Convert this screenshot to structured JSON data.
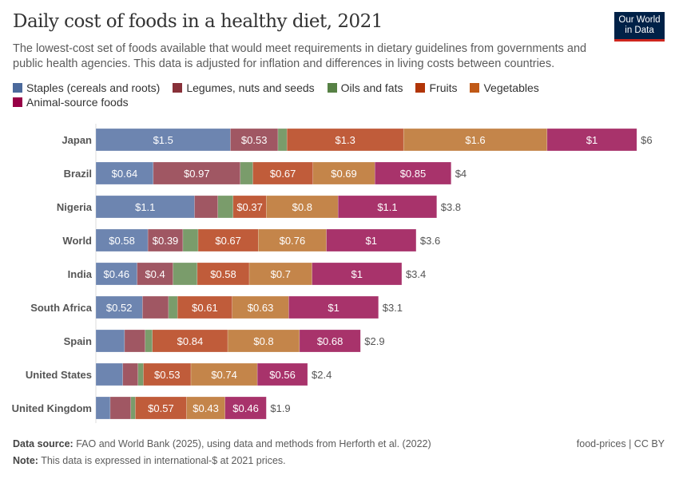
{
  "header": {
    "title": "Daily cost of foods in a healthy diet, 2021",
    "subtitle": "The lowest-cost set of foods available that would meet requirements in dietary guidelines from governments and public health agencies. This data is adjusted for inflation and differences in living costs between countries.",
    "logo_line1": "Our World",
    "logo_line2": "in Data"
  },
  "chart_data": {
    "type": "bar",
    "orientation": "horizontal",
    "stacked": true,
    "categories": [
      "Japan",
      "Brazil",
      "Nigeria",
      "World",
      "India",
      "South Africa",
      "Spain",
      "United States",
      "United Kingdom"
    ],
    "series": [
      {
        "name": "Staples (cereals and roots)",
        "color": "#6d85b0",
        "legend_color": "#4c6a9c",
        "values": [
          1.5,
          0.64,
          1.1,
          0.58,
          0.46,
          0.52,
          0.32,
          0.3,
          0.16
        ],
        "labels": [
          "$1.5",
          "$0.64",
          "$1.1",
          "$0.58",
          "$0.46",
          "$0.52",
          "",
          "",
          ""
        ]
      },
      {
        "name": "Legumes, nuts and seeds",
        "color": "#a05763",
        "legend_color": "#883039",
        "values": [
          0.53,
          0.97,
          0.26,
          0.39,
          0.4,
          0.29,
          0.23,
          0.17,
          0.23
        ],
        "labels": [
          "$0.53",
          "$0.97",
          "",
          "$0.39",
          "$0.4",
          "",
          "",
          "",
          ""
        ]
      },
      {
        "name": "Oils and fats",
        "color": "#7a9c6b",
        "legend_color": "#578145",
        "values": [
          0.1,
          0.14,
          0.17,
          0.17,
          0.27,
          0.1,
          0.08,
          0.06,
          0.05
        ],
        "labels": [
          "",
          "",
          "",
          "",
          "",
          "",
          "",
          "",
          ""
        ]
      },
      {
        "name": "Fruits",
        "color": "#c05c3a",
        "legend_color": "#b13507",
        "values": [
          1.3,
          0.67,
          0.37,
          0.67,
          0.58,
          0.61,
          0.84,
          0.53,
          0.57
        ],
        "labels": [
          "$1.3",
          "$0.67",
          "$0.37",
          "$0.67",
          "$0.58",
          "$0.61",
          "$0.84",
          "$0.53",
          "$0.57"
        ]
      },
      {
        "name": "Vegetables",
        "color": "#c4854a",
        "legend_color": "#c05917",
        "values": [
          1.6,
          0.69,
          0.8,
          0.76,
          0.7,
          0.63,
          0.8,
          0.74,
          0.43
        ],
        "labels": [
          "$1.6",
          "$0.69",
          "$0.8",
          "$0.76",
          "$0.7",
          "$0.63",
          "$0.8",
          "$0.74",
          "$0.43"
        ]
      },
      {
        "name": "Animal-source foods",
        "color": "#a8336b",
        "legend_color": "#970046",
        "values": [
          1,
          0.85,
          1.1,
          1,
          1,
          1,
          0.68,
          0.56,
          0.46
        ],
        "labels": [
          "$1",
          "$0.85",
          "$1.1",
          "$1",
          "$1",
          "$1",
          "$0.68",
          "$0.56",
          "$0.46"
        ]
      }
    ],
    "totals": [
      "$6",
      "$4",
      "$3.8",
      "$3.6",
      "$3.4",
      "$3.1",
      "$2.9",
      "$2.4",
      "$1.9"
    ],
    "legend_placement": "top",
    "grid": false
  },
  "footer": {
    "source_label": "Data source:",
    "source": "FAO and World Bank (2025), using data and methods from Herforth et al. (2022)",
    "note_label": "Note:",
    "note": "This data is expressed in international-$ at 2021 prices.",
    "license": "food-prices | CC BY"
  }
}
